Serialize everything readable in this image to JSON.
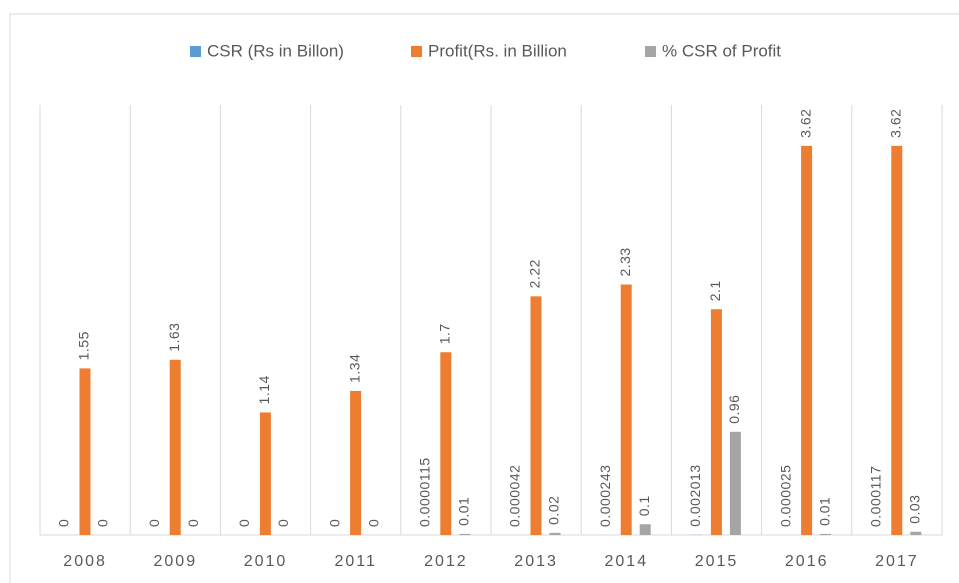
{
  "chart_data": {
    "type": "bar",
    "categories": [
      "2008",
      "2009",
      "2010",
      "2011",
      "2012",
      "2013",
      "2014",
      "2015",
      "2016",
      "2017"
    ],
    "series": [
      {
        "name": "CSR (Rs in Billon)",
        "color": "#5b9bd5",
        "values": [
          0,
          0,
          0,
          0,
          1.15e-05,
          4.2e-05,
          0.000243,
          0.002013,
          2.5e-05,
          0.000117
        ]
      },
      {
        "name": "Profit(Rs. in Billion",
        "color": "#ed7d31",
        "values": [
          1.55,
          1.63,
          1.14,
          1.34,
          1.7,
          2.22,
          2.33,
          2.1,
          3.62,
          3.62
        ]
      },
      {
        "name": "% CSR of Profit",
        "color": "#a5a5a5",
        "values": [
          0,
          0,
          0,
          0,
          0.01,
          0.02,
          0.1,
          0.96,
          0.01,
          0.03
        ]
      }
    ],
    "ylim": [
      0,
      4
    ],
    "legend": "top",
    "grid": "vertical"
  }
}
